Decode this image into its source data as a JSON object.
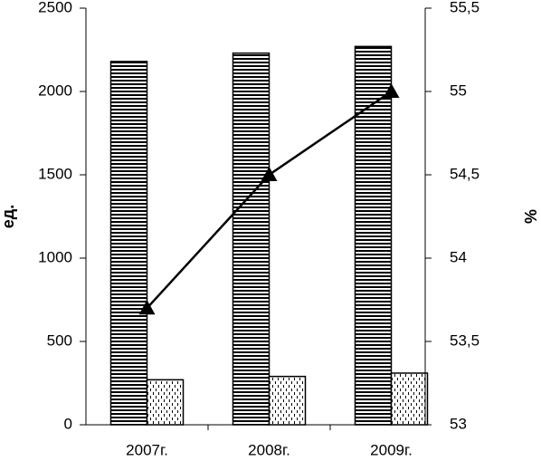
{
  "chart_data": {
    "type": "bar",
    "categories": [
      "2007г.",
      "2008г.",
      "2009г."
    ],
    "ylabel": "ед.",
    "y2label": "%",
    "ylim": [
      0,
      2500
    ],
    "yticks": [
      0,
      500,
      1000,
      1500,
      2000,
      2500
    ],
    "y2lim": [
      53,
      55.5
    ],
    "y2ticks": [
      53,
      {
        "value": 53.5,
        "label": "53,5"
      },
      54,
      {
        "value": 54.5,
        "label": "54,5"
      },
      55,
      {
        "value": 55.5,
        "label": "55,5"
      }
    ],
    "series": [
      {
        "type": "bar",
        "color": "#000000",
        "pattern": "horizontal-lines",
        "values": [
          2180,
          2230,
          2270
        ]
      },
      {
        "type": "bar",
        "color": "#000000",
        "pattern": "dots",
        "values": [
          270,
          290,
          310
        ]
      },
      {
        "type": "line",
        "color": "#000000",
        "marker": "triangle",
        "axis": "y2",
        "values": [
          53.7,
          54.5,
          55.0
        ]
      }
    ]
  }
}
